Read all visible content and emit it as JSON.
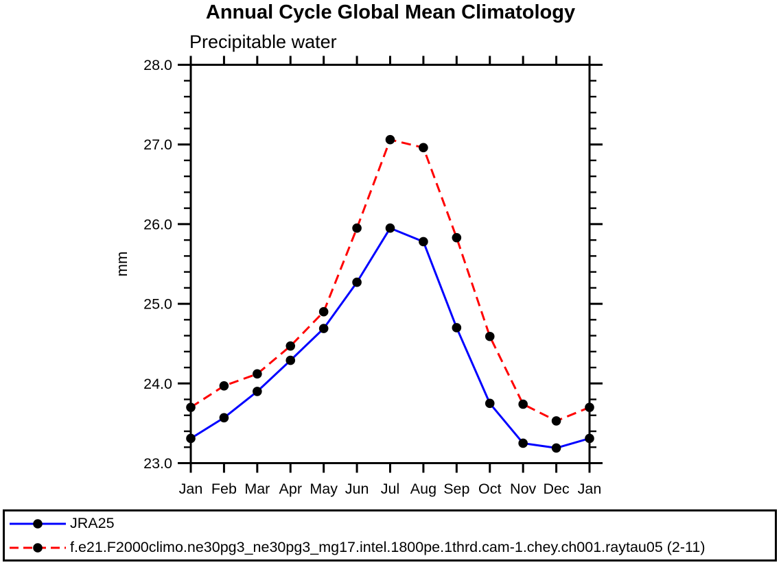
{
  "figure": {
    "title": "Annual Cycle Global Mean Climatology",
    "subtitle": "Precipitable water",
    "ylabel": "mm"
  },
  "chart_data": {
    "type": "line",
    "title": "Annual Cycle Global Mean Climatology",
    "subtitle": "Precipitable water",
    "xlabel": "",
    "ylabel": "mm",
    "categories": [
      "Jan",
      "Feb",
      "Mar",
      "Apr",
      "May",
      "Jun",
      "Jul",
      "Aug",
      "Sep",
      "Oct",
      "Nov",
      "Dec",
      "Jan"
    ],
    "ylim": [
      23.0,
      28.0
    ],
    "ytick_values": [
      23,
      24,
      25,
      26,
      27,
      28
    ],
    "ytick_labels": [
      "23.0",
      "24.0",
      "25.0",
      "26.0",
      "27.0",
      "28.0"
    ],
    "y_minor_step": 0.2,
    "grid": false,
    "legend_position": "bottom-box",
    "marker": "filled-circle",
    "marker_color": "#000000",
    "series": [
      {
        "name": "JRA25",
        "color": "#0000ff",
        "style": "solid",
        "values": [
          23.31,
          23.57,
          23.9,
          24.29,
          24.69,
          25.27,
          25.95,
          25.78,
          24.7,
          23.75,
          23.25,
          23.19,
          23.31
        ]
      },
      {
        "name": "f.e21.F2000climo.ne30pg3_ne30pg3_mg17.intel.1800pe.1thrd.cam-1.chey.ch001.raytau05 (2-11)",
        "color": "#ff0000",
        "style": "dashed",
        "values": [
          23.7,
          23.97,
          24.12,
          24.47,
          24.9,
          25.95,
          27.06,
          26.96,
          25.83,
          24.59,
          23.74,
          23.53,
          23.7
        ]
      }
    ]
  }
}
